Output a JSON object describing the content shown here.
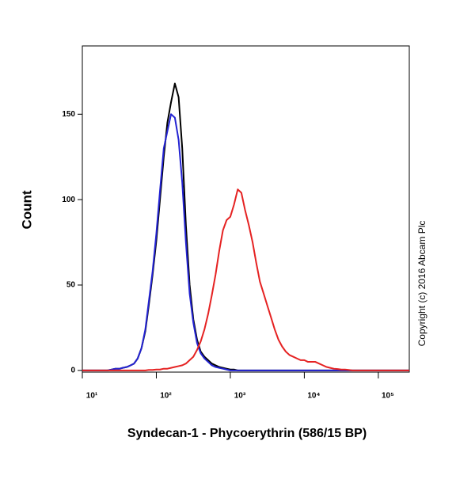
{
  "chart_data": {
    "type": "line",
    "y_title": "Count",
    "x_title": "Syndecan-1 - Phycoerythrin (586/15 BP)",
    "annotation": "Copyright (c) 2016 Abcam Plc",
    "xscale": "log",
    "xlim": [
      10,
      262144
    ],
    "ylim": [
      -1,
      190
    ],
    "xticks": [
      {
        "value": 10,
        "label": "10¹"
      },
      {
        "value": 100,
        "label": "10²"
      },
      {
        "value": 1000,
        "label": "10³"
      },
      {
        "value": 10000,
        "label": "10⁴"
      },
      {
        "value": 100000,
        "label": "10⁵"
      }
    ],
    "yticks": [
      0,
      50,
      100,
      150
    ],
    "x": [
      10,
      20,
      22,
      25,
      28,
      32,
      35,
      40,
      45,
      50,
      56,
      63,
      71,
      79,
      89,
      100,
      112,
      126,
      141,
      158,
      178,
      200,
      224,
      251,
      282,
      316,
      355,
      398,
      447,
      501,
      562,
      631,
      708,
      794,
      891,
      1000,
      1120,
      1260,
      1410,
      1580,
      1780,
      2000,
      2240,
      2510,
      2820,
      3160,
      3550,
      3980,
      4470,
      5010,
      5620,
      6310,
      7080,
      7940,
      8910,
      10000,
      11200,
      12600,
      14100,
      15800,
      17800,
      20000,
      22400,
      25100,
      28200,
      31600,
      35500,
      39800,
      44700,
      50100,
      262144
    ],
    "series": [
      {
        "color": "#000000",
        "values": [
          0,
          0,
          0,
          0.5,
          1,
          1,
          1.5,
          2,
          3,
          4,
          7,
          13,
          23,
          38,
          56,
          76,
          100,
          125,
          145,
          157,
          168,
          160,
          130,
          85,
          50,
          30,
          18,
          11,
          8,
          6,
          4,
          3,
          2,
          1.5,
          1,
          0.5,
          0.5,
          0,
          0,
          0,
          0,
          0,
          0,
          0,
          0,
          0,
          0,
          0,
          0,
          0,
          0,
          0,
          0,
          0,
          0,
          0,
          0,
          0,
          0,
          0,
          0,
          0,
          0,
          0,
          0,
          0,
          0,
          0,
          0,
          0,
          0
        ]
      },
      {
        "color": "#2323d2",
        "values": [
          0,
          0,
          0,
          0.5,
          1,
          1,
          1.5,
          2,
          3,
          4,
          7,
          13,
          24,
          40,
          58,
          80,
          105,
          130,
          140,
          150,
          148,
          135,
          110,
          75,
          45,
          28,
          16,
          10,
          7,
          5,
          3,
          2,
          1.5,
          1,
          0.5,
          0,
          0,
          0,
          0,
          0,
          0,
          0,
          0,
          0,
          0,
          0,
          0,
          0,
          0,
          0,
          0,
          0,
          0,
          0,
          0,
          0,
          0,
          0,
          0,
          0,
          0,
          0,
          0,
          0,
          0,
          0,
          0,
          0,
          0,
          0,
          0
        ]
      },
      {
        "color": "#e52222",
        "values": [
          0,
          0,
          0,
          0,
          0,
          0,
          0,
          0,
          0,
          0,
          0,
          0,
          0,
          0.3,
          0.3,
          0.5,
          0.5,
          1,
          1,
          1.5,
          2,
          2.5,
          3,
          4,
          6,
          8,
          12,
          17,
          24,
          33,
          44,
          56,
          70,
          82,
          88,
          90,
          97,
          106,
          104,
          94,
          85,
          75,
          63,
          52,
          45,
          38,
          31,
          24,
          18,
          14,
          11,
          9,
          8,
          7,
          6,
          6,
          5,
          5,
          5,
          4,
          3,
          2,
          1.5,
          1,
          0.8,
          0.5,
          0.5,
          0.3,
          0,
          0,
          0
        ]
      }
    ]
  }
}
